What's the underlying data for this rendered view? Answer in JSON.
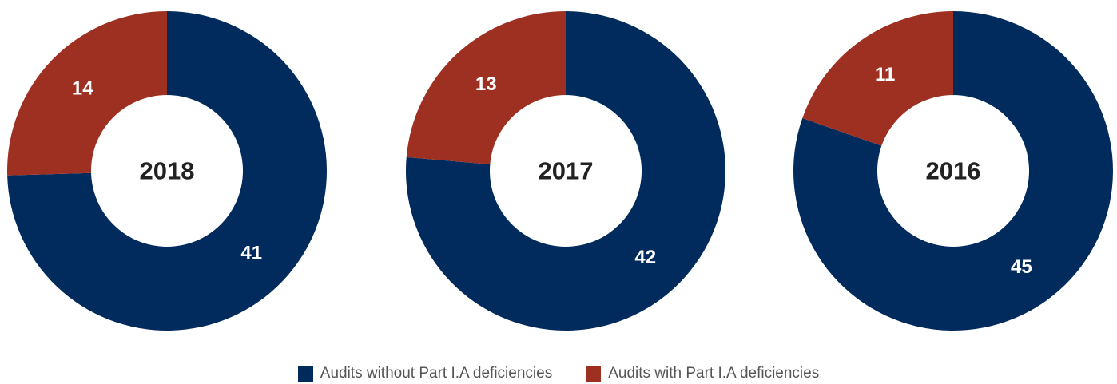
{
  "colors": {
    "without": "#002b5c",
    "with": "#9e3022",
    "hole": "#ffffff",
    "center_text": "#222222",
    "value_text": "#ffffff"
  },
  "legend": [
    {
      "label": "Audits without Part I.A deficiencies",
      "color": "#002b5c"
    },
    {
      "label": "Audits with Part I.A deficiencies",
      "color": "#9e3022"
    }
  ],
  "chart_data": [
    {
      "type": "pie",
      "center_label": "2018",
      "slices": [
        {
          "name": "Audits without Part I.A deficiencies",
          "value": 41
        },
        {
          "name": "Audits with Part I.A deficiencies",
          "value": 14
        }
      ]
    },
    {
      "type": "pie",
      "center_label": "2017",
      "slices": [
        {
          "name": "Audits without Part I.A deficiencies",
          "value": 42
        },
        {
          "name": "Audits with Part I.A deficiencies",
          "value": 13
        }
      ]
    },
    {
      "type": "pie",
      "center_label": "2016",
      "slices": [
        {
          "name": "Audits without Part I.A deficiencies",
          "value": 45
        },
        {
          "name": "Audits with Part I.A deficiencies",
          "value": 11
        }
      ]
    }
  ]
}
